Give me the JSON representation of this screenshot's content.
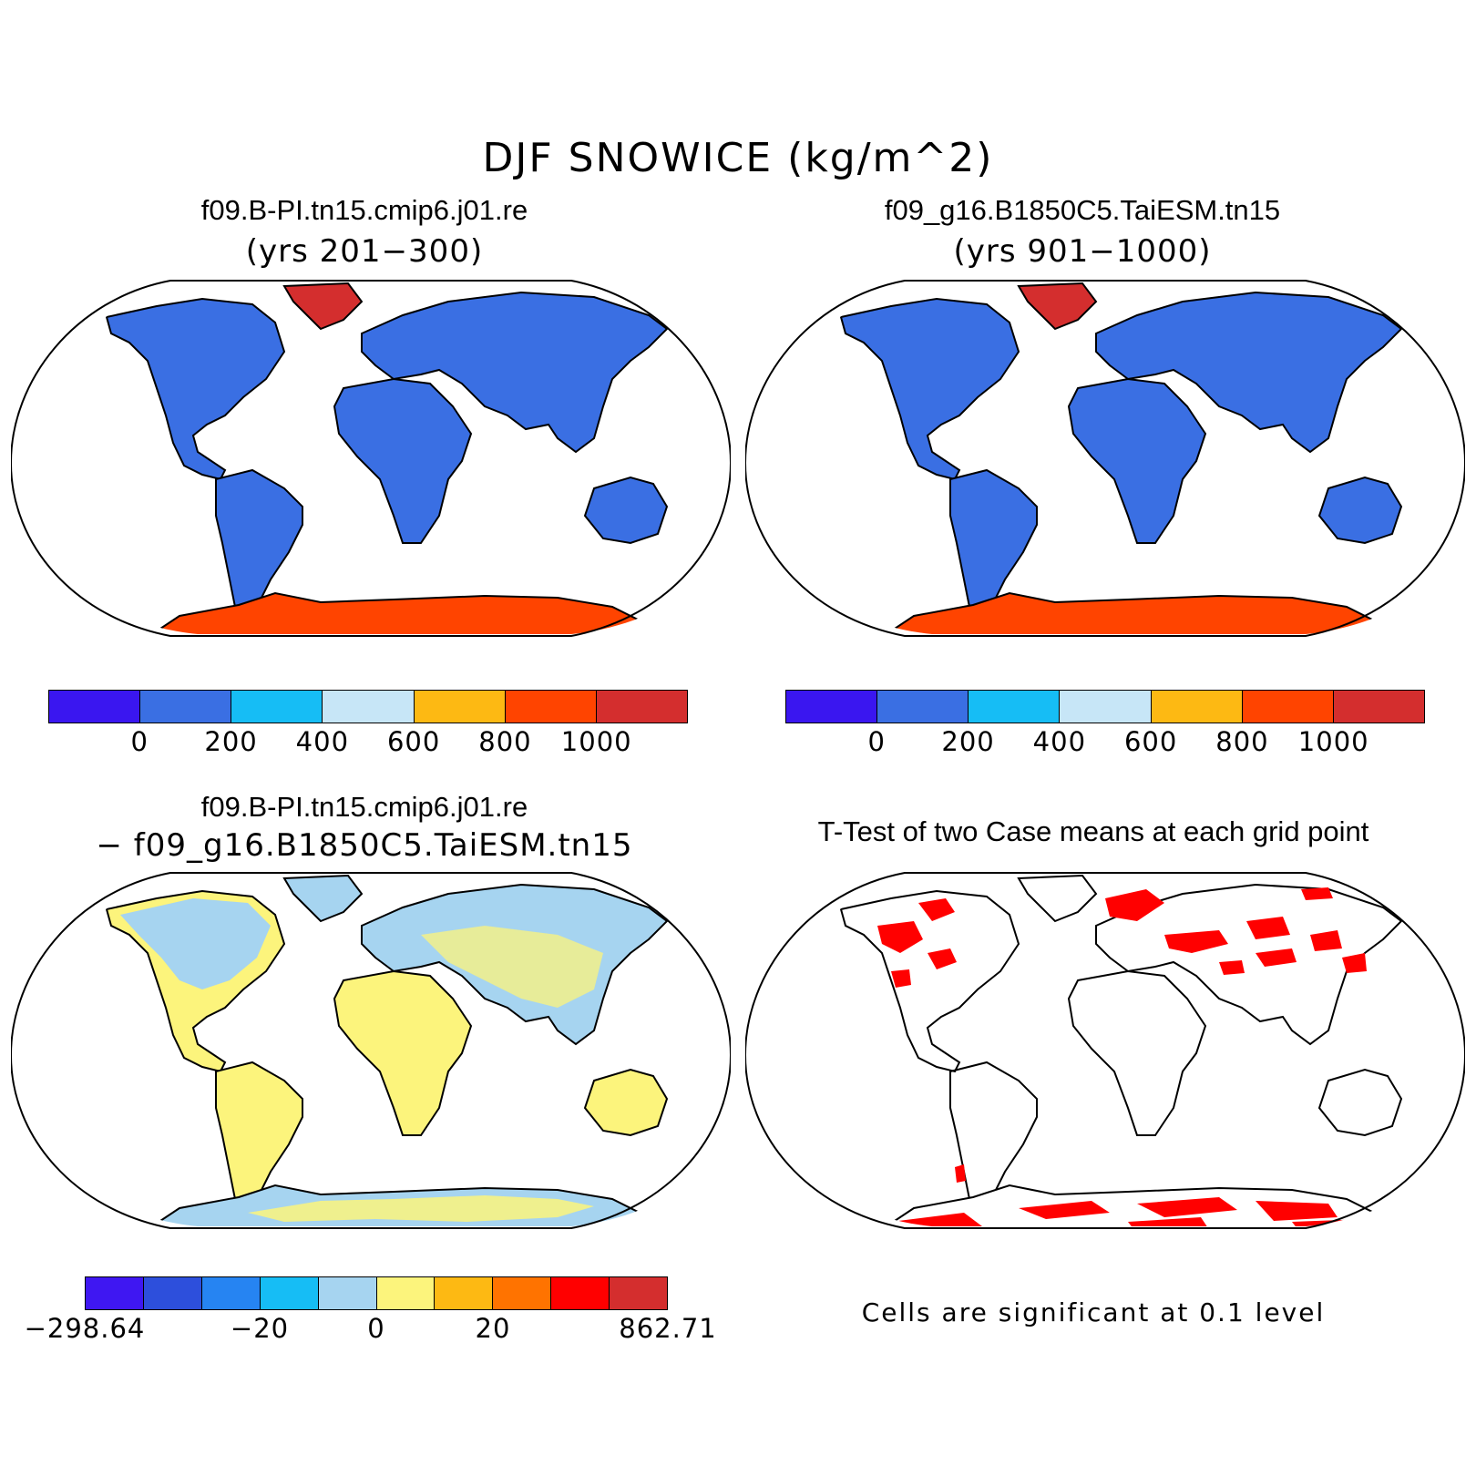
{
  "figure": {
    "title": "DJF SNOWICE (kg/m^2)"
  },
  "panels": [
    {
      "id": "case1",
      "title": "f09.B-PI.tn15.cmip6.j01.re",
      "subtitle": "(yrs 201−300)",
      "land_fill": "#3a6fe3",
      "greenland_fill": "#d42e2e",
      "antarctica_fill": "#ff4400"
    },
    {
      "id": "case2",
      "title": "f09_g16.B1850C5.TaiESM.tn15",
      "subtitle": "(yrs 901−1000)",
      "land_fill": "#3a6fe3",
      "greenland_fill": "#d42e2e",
      "antarctica_fill": "#ff4400"
    },
    {
      "id": "difference",
      "title": "f09.B-PI.tn15.cmip6.j01.re",
      "subtitle": "− f09_g16.B1850C5.TaiESM.tn15",
      "land_fill": "#fcf47c",
      "nh_fill": "#a6d4f0",
      "antarctica_fill": "#a6d4f0"
    },
    {
      "id": "ttest",
      "title": "T-Test of two Case means at each grid point",
      "note": "Cells are significant at 0.1 level",
      "significant_color": "#ff0000"
    }
  ],
  "colorbars": {
    "snow": {
      "colors": [
        "#3a16f0",
        "#3a6fe3",
        "#16bdf5",
        "#c7e6f7",
        "#fdb913",
        "#ff4400",
        "#d42e2e"
      ],
      "labels": [
        "0",
        "200",
        "400",
        "600",
        "800",
        "1000"
      ]
    },
    "diff": {
      "colors": [
        "#3f17f2",
        "#2d4fdc",
        "#2684f2",
        "#16bdf5",
        "#a6d4f0",
        "#fcf47c",
        "#fdb913",
        "#ff7300",
        "#ff0000",
        "#d42e2e"
      ],
      "labels": [
        "−298.64",
        "−20",
        "0",
        "20",
        "862.71"
      ]
    }
  }
}
